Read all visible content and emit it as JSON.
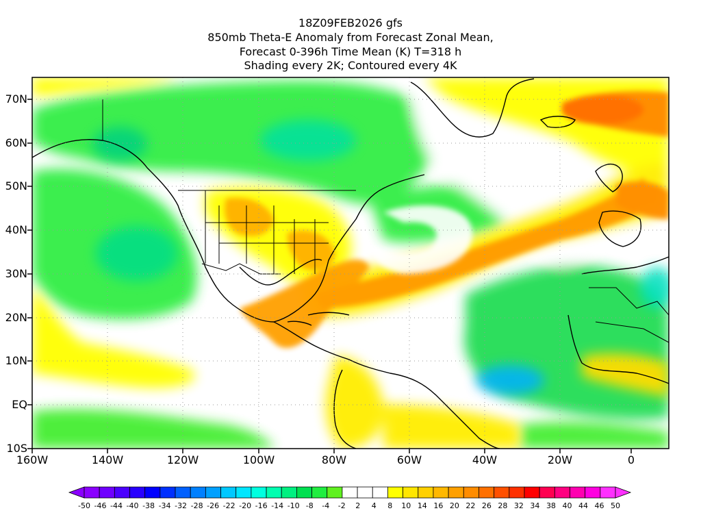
{
  "title": {
    "line1": "18Z09FEB2026 gfs",
    "line2": "850mb Theta-E Anomaly from Forecast Zonal Mean,",
    "line3": "Forecast 0-396h Time Mean (K) T=318 h",
    "line4": "Shading every 2K; Contoured every 4K"
  },
  "lat_labels": [
    "70N",
    "60N",
    "50N",
    "40N",
    "30N",
    "20N",
    "10N",
    "EQ",
    "10S"
  ],
  "lon_labels": [
    "160W",
    "140W",
    "120W",
    "100W",
    "80W",
    "60W",
    "40W",
    "20W",
    "0"
  ],
  "colorbar": {
    "labels": [
      "-50",
      "-46",
      "-44",
      "-40",
      "-38",
      "-34",
      "-32",
      "-28",
      "-26",
      "-22",
      "-20",
      "-16",
      "-14",
      "-10",
      "-8",
      "-4",
      "-2",
      "2",
      "4",
      "8",
      "10",
      "14",
      "16",
      "20",
      "22",
      "26",
      "28",
      "32",
      "34",
      "38",
      "40",
      "44",
      "46",
      "50"
    ],
    "colors": [
      "#8a00ff",
      "#6f00ff",
      "#4b00ff",
      "#2800ff",
      "#0000ff",
      "#0030ff",
      "#0060ff",
      "#0080ff",
      "#00a0ff",
      "#00c8ff",
      "#00e6ff",
      "#00ffe0",
      "#00ffb0",
      "#00f080",
      "#00e050",
      "#20ee40",
      "#60f020",
      "#ffffff",
      "#ffffff",
      "#ffffff",
      "#ffff00",
      "#ffe600",
      "#ffd000",
      "#ffb800",
      "#ffa000",
      "#ff8c00",
      "#ff7000",
      "#ff5000",
      "#ff3000",
      "#ff0000",
      "#ff0050",
      "#ff0080",
      "#ff00b0",
      "#ff00e0",
      "#ff30ff"
    ]
  }
}
